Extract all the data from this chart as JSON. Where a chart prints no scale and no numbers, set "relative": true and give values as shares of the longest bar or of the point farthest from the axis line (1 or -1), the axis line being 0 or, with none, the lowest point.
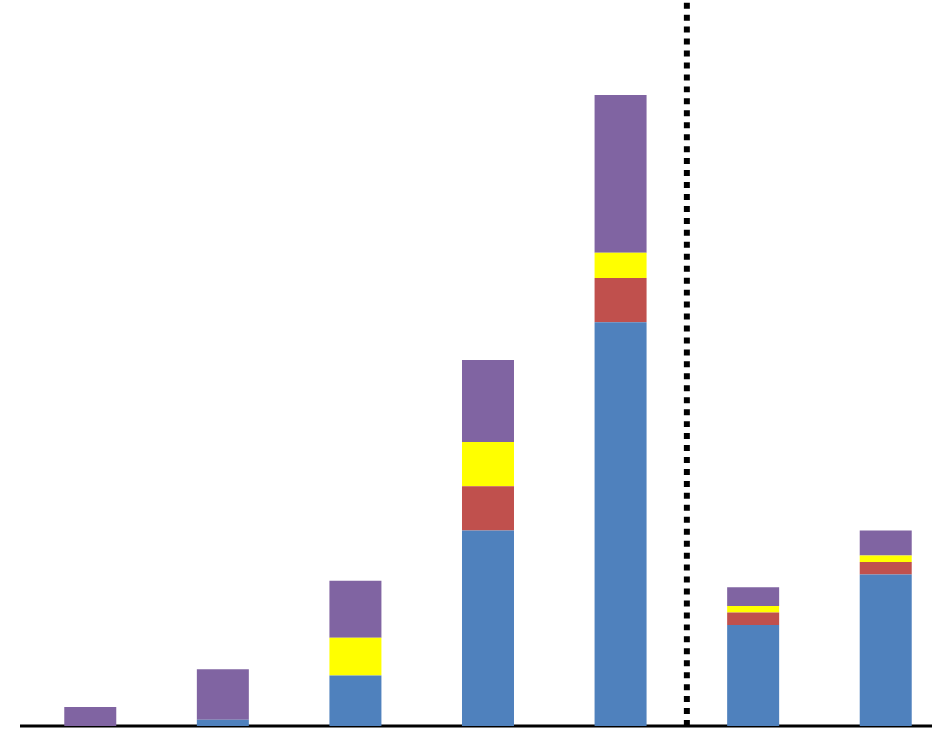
{
  "chart_data": {
    "type": "bar",
    "stacked": true,
    "relative": true,
    "categories": [
      null,
      null,
      null,
      null,
      null,
      null,
      null
    ],
    "series": [
      {
        "color": "#4f81bd",
        "values": [
          0,
          0.01,
          0.08,
          0.31,
          0.64,
          0.16,
          0.24
        ]
      },
      {
        "color": "#c0504d",
        "values": [
          0,
          0,
          0,
          0.07,
          0.07,
          0.02,
          0.02
        ]
      },
      {
        "color": "#ffff00",
        "values": [
          0,
          0,
          0.06,
          0.07,
          0.04,
          0.01,
          0.01
        ]
      },
      {
        "color": "#8064a2",
        "values": [
          0.03,
          0.08,
          0.09,
          0.13,
          0.25,
          0.03,
          0.04
        ]
      }
    ]
  }
}
